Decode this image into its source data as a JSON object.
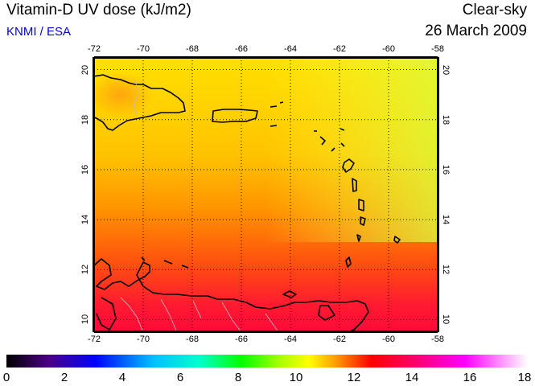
{
  "header": {
    "title": "Vitamin-D UV dose (kJ/m2)",
    "source": "KNMI / ESA",
    "condition": "Clear-sky",
    "date": "26 March 2009"
  },
  "map": {
    "lon_ticks": [
      "-72",
      "-70",
      "-68",
      "-66",
      "-64",
      "-62",
      "-60",
      "-58"
    ],
    "lat_ticks": [
      "20",
      "18",
      "16",
      "14",
      "12",
      "10"
    ],
    "lon_range": [
      -72,
      -58
    ],
    "lat_range": [
      9.5,
      20.5
    ],
    "gridlines": true,
    "colors": {
      "land_outline": "#000000",
      "border": "#bbbbbb"
    }
  },
  "colorbar": {
    "labels": [
      "0",
      "2",
      "4",
      "6",
      "8",
      "10",
      "12",
      "14",
      "16",
      "18"
    ],
    "range": [
      0,
      18
    ],
    "stops": [
      "#000000",
      "#4b0082",
      "#0000ff",
      "#00bfff",
      "#00ffcc",
      "#00ff00",
      "#a0ff00",
      "#ffff00",
      "#ffa000",
      "#ff0000",
      "#ff0066",
      "#ff00ff",
      "#ffffff"
    ]
  }
}
